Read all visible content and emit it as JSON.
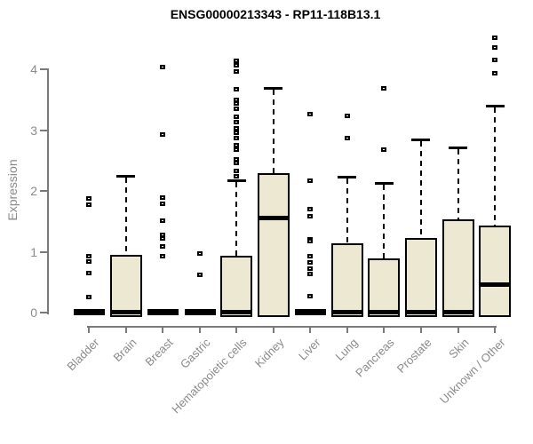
{
  "chart_data": {
    "type": "boxplot",
    "title": "ENSG00000213343 - RP11-118B13.1",
    "ylabel": "Expression",
    "xlabel": "",
    "ylim": [
      0,
      4.6
    ],
    "yticks": [
      0,
      1,
      2,
      3,
      4
    ],
    "grid": "off",
    "legend": "none",
    "categories": [
      "Bladder",
      "Brain",
      "Breast",
      "Gastric",
      "Hematopoietic cells",
      "Kidney",
      "Liver",
      "Lung",
      "Pancreas",
      "Prostate",
      "Skin",
      "Unknown / Other"
    ],
    "series": [
      {
        "label": "Bladder",
        "flat": true,
        "q1": 0,
        "median": 0,
        "q3": 0.03,
        "whisker_high": 0.03,
        "outliers": [
          1.88,
          1.78,
          0.93,
          0.85,
          0.66,
          0.26
        ]
      },
      {
        "label": "Brain",
        "flat": false,
        "q1": 0,
        "median": 0.02,
        "q3": 0.93,
        "whisker_high": 2.25,
        "outliers": []
      },
      {
        "label": "Breast",
        "flat": true,
        "q1": 0,
        "median": 0,
        "q3": 0.03,
        "whisker_high": 0.03,
        "outliers": [
          4.05,
          2.93,
          1.9,
          1.8,
          1.52,
          1.28,
          1.22,
          1.1,
          0.93
        ]
      },
      {
        "label": "Gastric",
        "flat": true,
        "q1": 0,
        "median": 0,
        "q3": 0.03,
        "whisker_high": 0.03,
        "outliers": [
          0.98,
          0.63
        ]
      },
      {
        "label": "Hematopoietic cells",
        "flat": false,
        "q1": 0,
        "median": 0.02,
        "q3": 0.92,
        "whisker_high": 2.18,
        "outliers": [
          4.15,
          4.08,
          3.97,
          3.68,
          3.5,
          3.44,
          3.36,
          3.23,
          3.14,
          3.04,
          2.96,
          2.88,
          2.76,
          2.68,
          2.53,
          2.46,
          2.33,
          2.25
        ]
      },
      {
        "label": "Kidney",
        "flat": false,
        "q1": 0,
        "median": 1.56,
        "q3": 2.28,
        "whisker_high": 3.7,
        "outliers": []
      },
      {
        "label": "Liver",
        "flat": true,
        "q1": 0,
        "median": 0,
        "q3": 0.03,
        "whisker_high": 0.03,
        "outliers": [
          3.27,
          2.18,
          1.71,
          1.59,
          1.21,
          1.18,
          0.93,
          0.83,
          0.73,
          0.64,
          0.28
        ]
      },
      {
        "label": "Lung",
        "flat": false,
        "q1": 0,
        "median": 0.02,
        "q3": 1.13,
        "whisker_high": 2.24,
        "outliers": [
          3.24,
          2.88
        ]
      },
      {
        "label": "Pancreas",
        "flat": false,
        "q1": 0,
        "median": 0.02,
        "q3": 0.87,
        "whisker_high": 2.13,
        "outliers": [
          3.69,
          2.69
        ]
      },
      {
        "label": "Prostate",
        "flat": false,
        "q1": 0,
        "median": 0.02,
        "q3": 1.21,
        "whisker_high": 2.85,
        "outliers": []
      },
      {
        "label": "Skin",
        "flat": false,
        "q1": 0,
        "median": 0.02,
        "q3": 1.52,
        "whisker_high": 2.72,
        "outliers": []
      },
      {
        "label": "Unknown / Other",
        "flat": false,
        "q1": 0,
        "median": 0.47,
        "q3": 1.42,
        "whisker_high": 3.4,
        "outliers": [
          4.52,
          4.36,
          4.16,
          3.94
        ]
      }
    ],
    "colors": {
      "box_fill": "#EDE8D1",
      "box_border": "#000000",
      "median": "#000000",
      "whisker": "#000000",
      "outlier_border": "#000000",
      "outlier_fill": "#ffffff",
      "axis_line": "#7a7a7a",
      "axis_text": "#8a8a8a",
      "title": "#000000",
      "background": "#ffffff"
    }
  }
}
